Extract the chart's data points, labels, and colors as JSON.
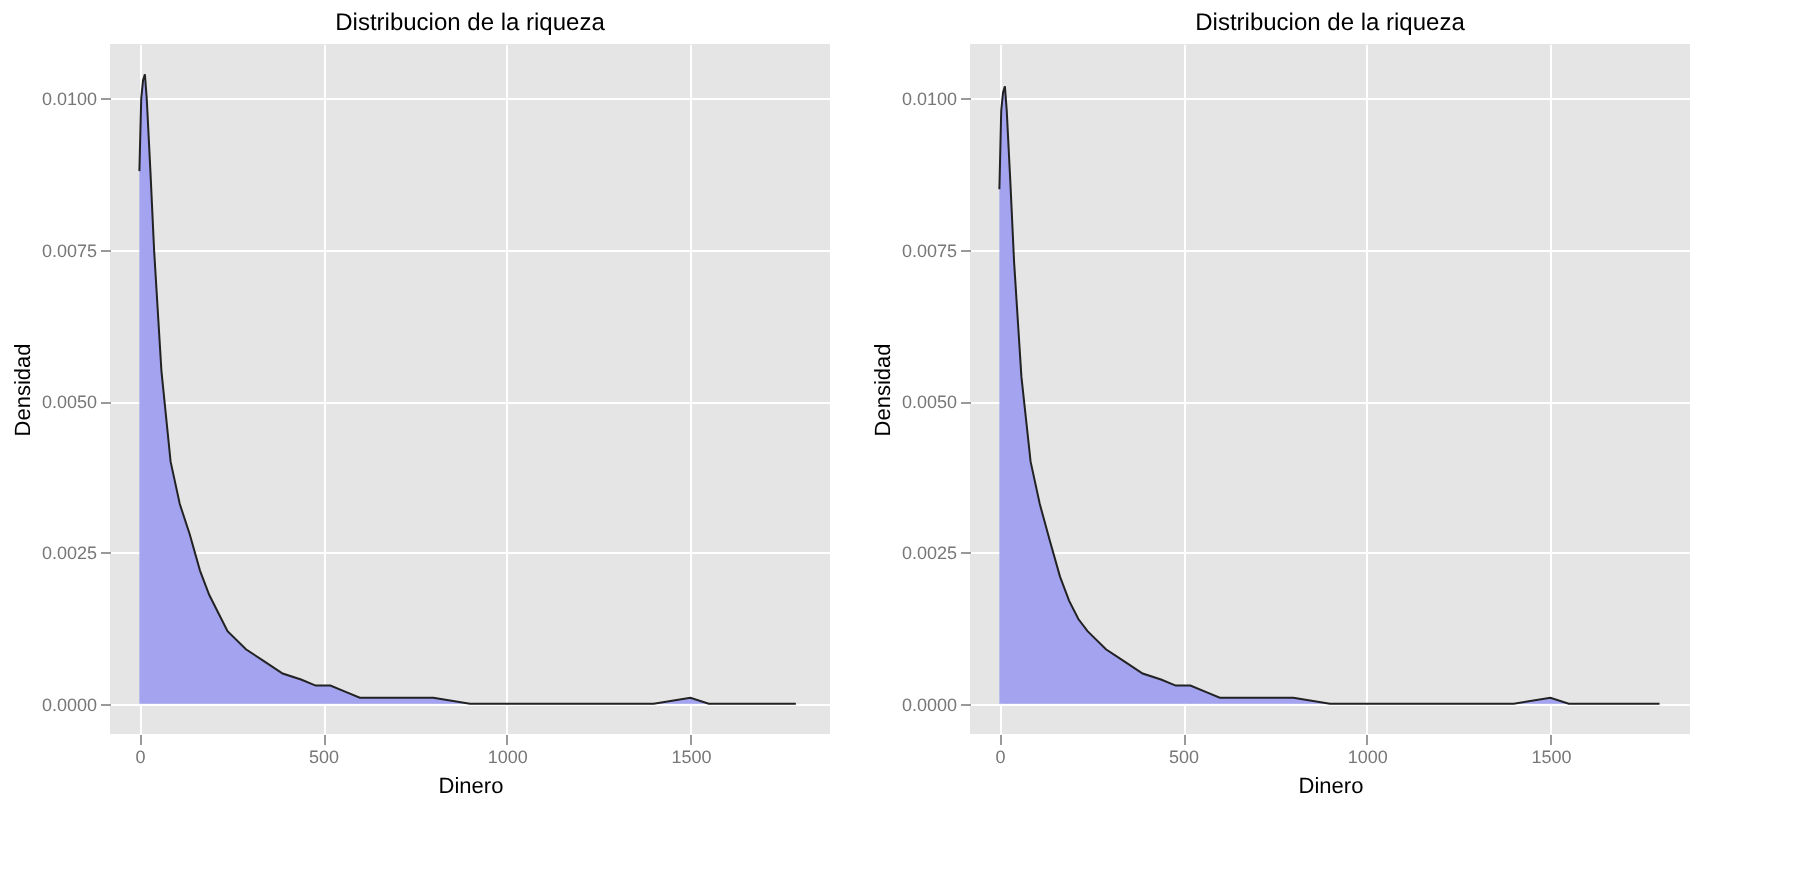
{
  "chart_data": [
    {
      "type": "area",
      "title": "Distribucion de la riqueza",
      "xlabel": "Dinero",
      "ylabel": "Densidad",
      "x": [
        0,
        5,
        10,
        15,
        20,
        30,
        40,
        60,
        85,
        110,
        137,
        165,
        190,
        215,
        240,
        290,
        340,
        390,
        440,
        480,
        520,
        560,
        600,
        650,
        700,
        800,
        900,
        1000,
        1100,
        1200,
        1300,
        1400,
        1500,
        1550,
        1600,
        1650,
        1700,
        1750,
        1787
      ],
      "series": [
        {
          "color": "#a3a3f0",
          "values": [
            0.0088,
            0.01,
            0.0103,
            0.0104,
            0.01,
            0.0088,
            0.0075,
            0.0055,
            0.004,
            0.0033,
            0.0028,
            0.0022,
            0.0018,
            0.0015,
            0.0012,
            0.0009,
            0.0007,
            0.0005,
            0.0004,
            0.0003,
            0.0003,
            0.0002,
            0.0001,
            0.0001,
            0.0001,
            0.0001,
            0.0,
            0.0,
            0.0,
            0.0,
            0.0,
            0.0,
            0.0001,
            0.0,
            0.0,
            0.0,
            0.0,
            0.0,
            0.0
          ]
        }
      ],
      "xlim": [
        -80,
        1880
      ],
      "ylim": [
        -0.0005,
        0.0109
      ],
      "xticks": [
        0,
        500,
        1000,
        1500
      ],
      "yticks": [
        {
          "value": 0,
          "label": "0.0000"
        },
        {
          "value": 0.0025,
          "label": "0.0025"
        },
        {
          "value": 0.005,
          "label": "0.0050"
        },
        {
          "value": 0.0075,
          "label": "0.0075"
        },
        {
          "value": 0.01,
          "label": "0.0100"
        }
      ],
      "grid": true
    },
    {
      "type": "area",
      "title": "Distribucion de la riqueza",
      "xlabel": "Dinero",
      "ylabel": "Densidad",
      "x": [
        0,
        5,
        10,
        15,
        20,
        30,
        40,
        60,
        85,
        110,
        137,
        165,
        190,
        215,
        240,
        290,
        340,
        390,
        440,
        480,
        520,
        560,
        600,
        650,
        700,
        800,
        900,
        1000,
        1100,
        1200,
        1300,
        1400,
        1500,
        1550,
        1600,
        1650,
        1700,
        1750,
        1797
      ],
      "series": [
        {
          "color": "#a3a3f0",
          "values": [
            0.0085,
            0.0098,
            0.0101,
            0.0102,
            0.0098,
            0.0086,
            0.0073,
            0.0054,
            0.004,
            0.0033,
            0.0027,
            0.0021,
            0.0017,
            0.0014,
            0.0012,
            0.0009,
            0.0007,
            0.0005,
            0.0004,
            0.0003,
            0.0003,
            0.0002,
            0.0001,
            0.0001,
            0.0001,
            0.0001,
            0.0,
            0.0,
            0.0,
            0.0,
            0.0,
            0.0,
            0.0001,
            0.0,
            0.0,
            0.0,
            0.0,
            0.0,
            0.0
          ]
        }
      ],
      "xlim": [
        -80,
        1880
      ],
      "ylim": [
        -0.0005,
        0.0109
      ],
      "xticks": [
        0,
        500,
        1000,
        1500
      ],
      "yticks": [
        {
          "value": 0,
          "label": "0.0000"
        },
        {
          "value": 0.0025,
          "label": "0.0025"
        },
        {
          "value": 0.005,
          "label": "0.0050"
        },
        {
          "value": 0.0075,
          "label": "0.0075"
        },
        {
          "value": 0.01,
          "label": "0.0100"
        }
      ],
      "grid": true
    }
  ]
}
